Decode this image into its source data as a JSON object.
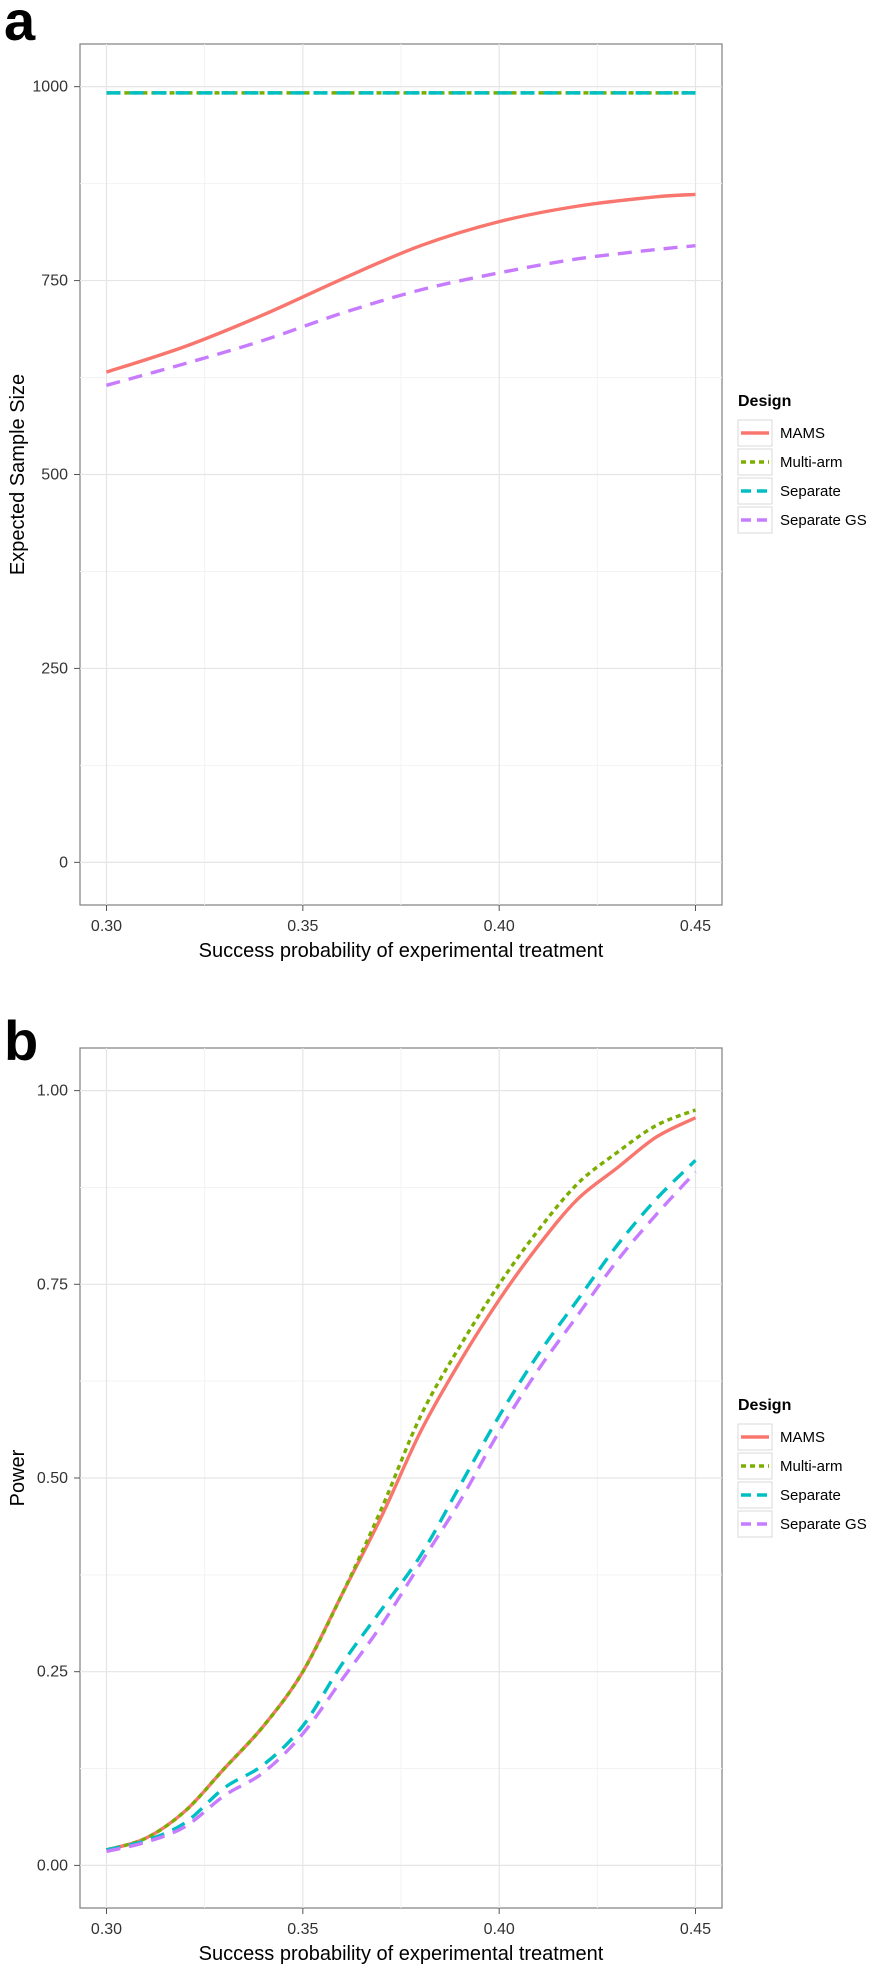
{
  "chart_data": [
    {
      "panel": "a",
      "type": "line",
      "xlabel": "Success probability of experimental treatment",
      "ylabel": "Expected Sample Size",
      "xlim": [
        0.3,
        0.45
      ],
      "ylim": [
        0,
        1000
      ],
      "xticks": [
        "0.30",
        "0.35",
        "0.40",
        "0.45"
      ],
      "yticks": [
        "0",
        "250",
        "500",
        "750",
        "1000"
      ],
      "grid": true,
      "legend": {
        "title": "Design",
        "position": "right"
      },
      "x": [
        0.3,
        0.32,
        0.34,
        0.36,
        0.38,
        0.4,
        0.42,
        0.44,
        0.45
      ],
      "series": [
        {
          "name": "MAMS",
          "color": "#f8766d",
          "style": "solid",
          "values": [
            632,
            665,
            706,
            752,
            795,
            826,
            846,
            858,
            861
          ]
        },
        {
          "name": "Multi-arm",
          "color": "#7cae00",
          "style": "dotted",
          "values": [
            992,
            992,
            992,
            992,
            992,
            992,
            992,
            992,
            992
          ]
        },
        {
          "name": "Separate",
          "color": "#00bfc4",
          "style": "dashed",
          "values": [
            992,
            992,
            992,
            992,
            992,
            992,
            992,
            992,
            992
          ]
        },
        {
          "name": "Separate GS",
          "color": "#c77cff",
          "style": "dashed",
          "values": [
            615,
            643,
            673,
            708,
            738,
            760,
            778,
            790,
            795
          ]
        }
      ]
    },
    {
      "panel": "b",
      "type": "line",
      "xlabel": "Success probability of experimental treatment",
      "ylabel": "Power",
      "xlim": [
        0.3,
        0.45
      ],
      "ylim": [
        0,
        1
      ],
      "xticks": [
        "0.30",
        "0.35",
        "0.40",
        "0.45"
      ],
      "yticks": [
        "0.00",
        "0.25",
        "0.50",
        "0.75",
        "1.00"
      ],
      "grid": true,
      "legend": {
        "title": "Design",
        "position": "right"
      },
      "x": [
        0.3,
        0.31,
        0.32,
        0.33,
        0.34,
        0.35,
        0.36,
        0.37,
        0.38,
        0.39,
        0.4,
        0.41,
        0.42,
        0.43,
        0.44,
        0.45
      ],
      "series": [
        {
          "name": "MAMS",
          "color": "#f8766d",
          "style": "solid",
          "values": [
            0.02,
            0.035,
            0.07,
            0.125,
            0.18,
            0.25,
            0.35,
            0.45,
            0.56,
            0.65,
            0.73,
            0.8,
            0.86,
            0.9,
            0.94,
            0.965
          ]
        },
        {
          "name": "Multi-arm",
          "color": "#7cae00",
          "style": "dotted",
          "values": [
            0.02,
            0.035,
            0.07,
            0.125,
            0.18,
            0.25,
            0.35,
            0.46,
            0.58,
            0.67,
            0.75,
            0.82,
            0.88,
            0.92,
            0.955,
            0.975
          ]
        },
        {
          "name": "Separate",
          "color": "#00bfc4",
          "style": "dashed",
          "values": [
            0.02,
            0.032,
            0.055,
            0.1,
            0.13,
            0.18,
            0.26,
            0.33,
            0.4,
            0.49,
            0.58,
            0.66,
            0.73,
            0.8,
            0.86,
            0.91
          ]
        },
        {
          "name": "Separate GS",
          "color": "#c77cff",
          "style": "dashed",
          "values": [
            0.018,
            0.03,
            0.05,
            0.09,
            0.12,
            0.17,
            0.24,
            0.31,
            0.39,
            0.47,
            0.56,
            0.64,
            0.71,
            0.78,
            0.84,
            0.895
          ]
        }
      ]
    }
  ]
}
